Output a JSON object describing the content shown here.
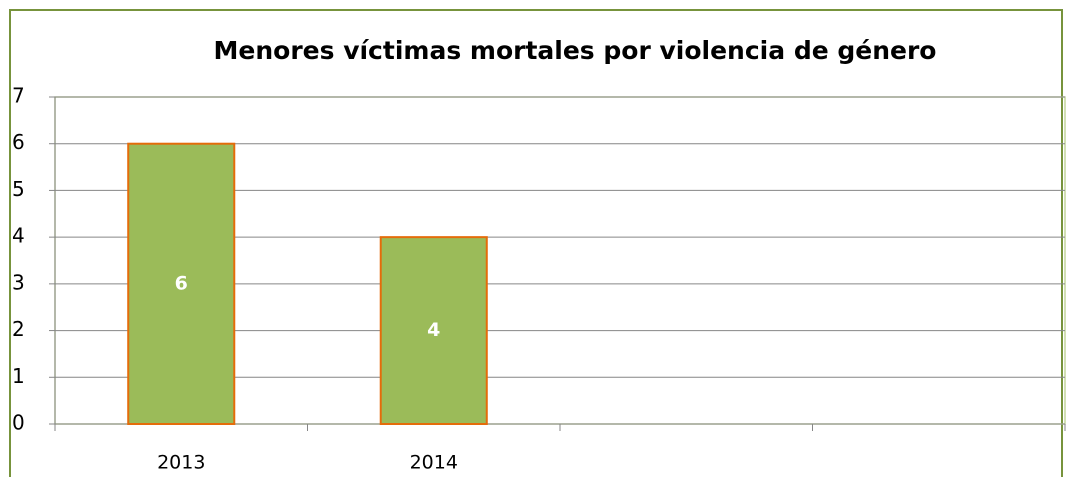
{
  "chart_data": {
    "type": "bar",
    "title": "Menores víctimas mortales por violencia de género",
    "categories": [
      "2013",
      "2014",
      null,
      null
    ],
    "values": [
      6,
      4,
      null,
      null
    ],
    "color": "#9bbb59",
    "edge_color": "#e46c0a",
    "ylim": [
      0,
      7
    ],
    "yticks": [
      0,
      1,
      2,
      3,
      4,
      5,
      6,
      7
    ],
    "grid": true,
    "data_labels": true
  }
}
